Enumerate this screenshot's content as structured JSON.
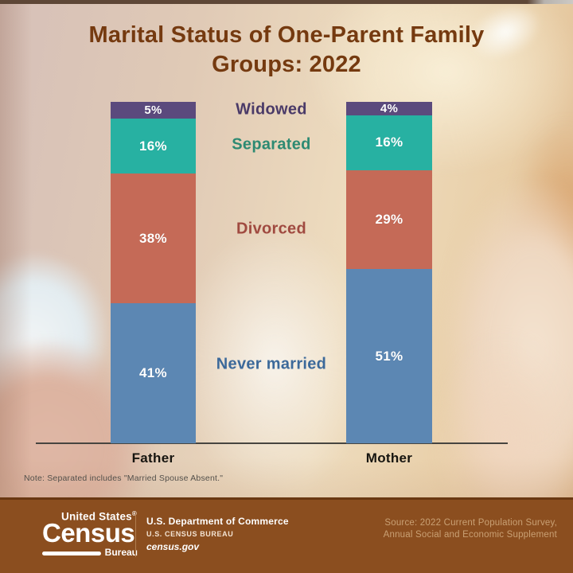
{
  "title": {
    "line1": "Marital Status of One-Parent Family",
    "line2": "Groups: 2022"
  },
  "note": "Note: Separated includes \"Married Spouse Absent.\"",
  "chart_data": {
    "type": "bar",
    "subtype": "stacked-percent",
    "title": "Marital Status of One-Parent Family Groups: 2022",
    "categories": [
      "Father",
      "Mother"
    ],
    "series": [
      {
        "name": "Widowed",
        "values": [
          5,
          4
        ],
        "color": "#5b4a7d",
        "label_color": "#4a3a68"
      },
      {
        "name": "Separated",
        "values": [
          16,
          16
        ],
        "color": "#27b1a2",
        "label_color": "#2d8a72"
      },
      {
        "name": "Divorced",
        "values": [
          38,
          29
        ],
        "color": "#c56a57",
        "label_color": "#a04a40"
      },
      {
        "name": "Never married",
        "values": [
          41,
          51
        ],
        "color": "#5c87b3",
        "label_color": "#3c699a"
      }
    ],
    "value_suffix": "%",
    "ylim": [
      0,
      100
    ],
    "grid": false,
    "legend_position": "between-bars"
  },
  "footer": {
    "logo_top": "United States",
    "logo_reg": "®",
    "logo_main": "Census",
    "logo_sub": "Bureau",
    "dept_line1": "U.S. Department of Commerce",
    "dept_line2": "U.S. CENSUS BUREAU",
    "dept_line3": "census.gov",
    "source_line1": "Source: 2022 Current Population Survey,",
    "source_line2": "Annual Social and Economic Supplement"
  },
  "colors": {
    "title_text": "#753a10",
    "footer_background": "#8b4e1f",
    "axis_line": "#474540",
    "source_text": "#c9a074"
  }
}
